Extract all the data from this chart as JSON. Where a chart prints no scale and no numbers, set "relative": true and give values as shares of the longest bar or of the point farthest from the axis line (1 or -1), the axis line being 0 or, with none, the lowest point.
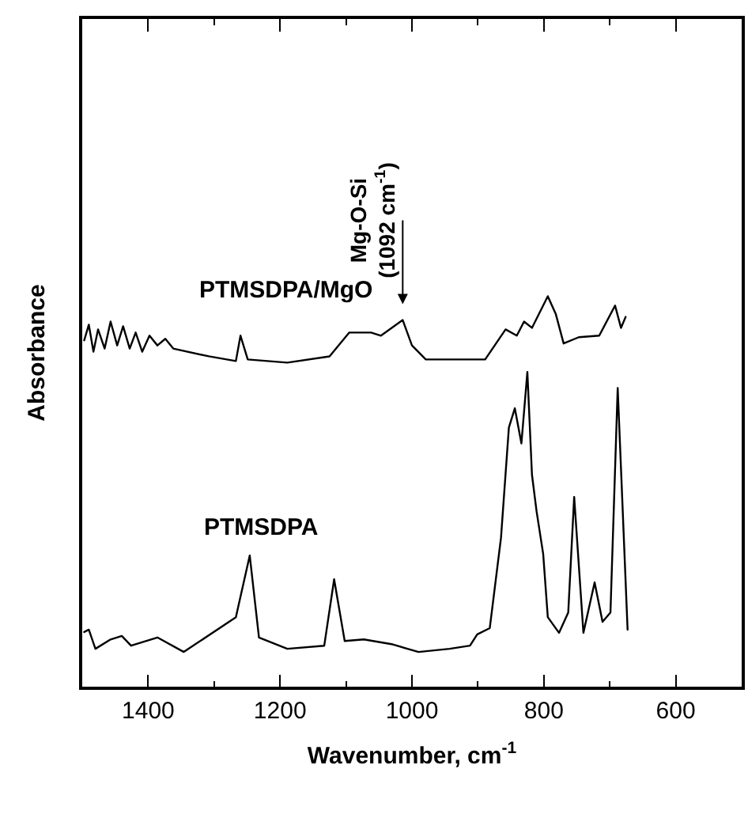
{
  "chart_data": {
    "type": "line",
    "relative": true,
    "xlabel": "Wavenumber, cm$^{-1}$",
    "ylabel": "Absorbance",
    "xlim": [
      1500,
      500
    ],
    "xticks": [
      1400,
      1200,
      1000,
      800,
      600,
      {
        "value": 1300,
        "label": null
      },
      {
        "value": 1100,
        "label": null
      },
      {
        "value": 900,
        "label": null
      },
      {
        "value": 700,
        "label": null
      }
    ],
    "marker": "none",
    "line_style": "solid",
    "series": [
      {
        "name": "PTMSDPA/MgO",
        "color": "#000000",
        "x": [
          1497,
          1490,
          1483,
          1476,
          1466,
          1457,
          1447,
          1438,
          1428,
          1419,
          1409,
          1398,
          1386,
          1374,
          1362,
          1308,
          1267,
          1260,
          1249,
          1189,
          1125,
          1095,
          1062,
          1047,
          1014,
          1000,
          979,
          889,
          858,
          841,
          830,
          818,
          794,
          782,
          770,
          747,
          716,
          692,
          683,
          676
        ],
        "values": [
          0.887,
          0.927,
          0.858,
          0.915,
          0.866,
          0.935,
          0.874,
          0.923,
          0.866,
          0.907,
          0.858,
          0.899,
          0.874,
          0.891,
          0.866,
          0.846,
          0.834,
          0.899,
          0.838,
          0.83,
          0.846,
          0.907,
          0.907,
          0.899,
          0.939,
          0.874,
          0.838,
          0.838,
          0.915,
          0.899,
          0.935,
          0.919,
          1.0,
          0.955,
          0.879,
          0.895,
          0.899,
          0.976,
          0.919,
          0.947
        ]
      },
      {
        "name": "PTMSDPA",
        "color": "#000000",
        "x": [
          1497,
          1490,
          1480,
          1457,
          1440,
          1426,
          1386,
          1346,
          1267,
          1246,
          1232,
          1189,
          1133,
          1118,
          1102,
          1073,
          1031,
          990,
          943,
          912,
          901,
          882,
          865,
          853,
          844,
          834,
          825,
          818,
          811,
          801,
          794,
          777,
          763,
          754,
          740,
          723,
          711,
          699,
          688,
          673
        ],
        "values": [
          0.14,
          0.146,
          0.097,
          0.121,
          0.13,
          0.105,
          0.126,
          0.089,
          0.178,
          0.336,
          0.126,
          0.097,
          0.105,
          0.275,
          0.117,
          0.121,
          0.109,
          0.089,
          0.097,
          0.105,
          0.134,
          0.15,
          0.381,
          0.664,
          0.713,
          0.623,
          0.806,
          0.543,
          0.449,
          0.34,
          0.178,
          0.138,
          0.19,
          0.486,
          0.138,
          0.267,
          0.166,
          0.19,
          0.765,
          0.146
        ]
      }
    ],
    "annotations": [
      {
        "text": "Mg-O-Si\n(1092 cm$^{-1}$)",
        "x": 1014,
        "y": 0.939
      }
    ]
  }
}
